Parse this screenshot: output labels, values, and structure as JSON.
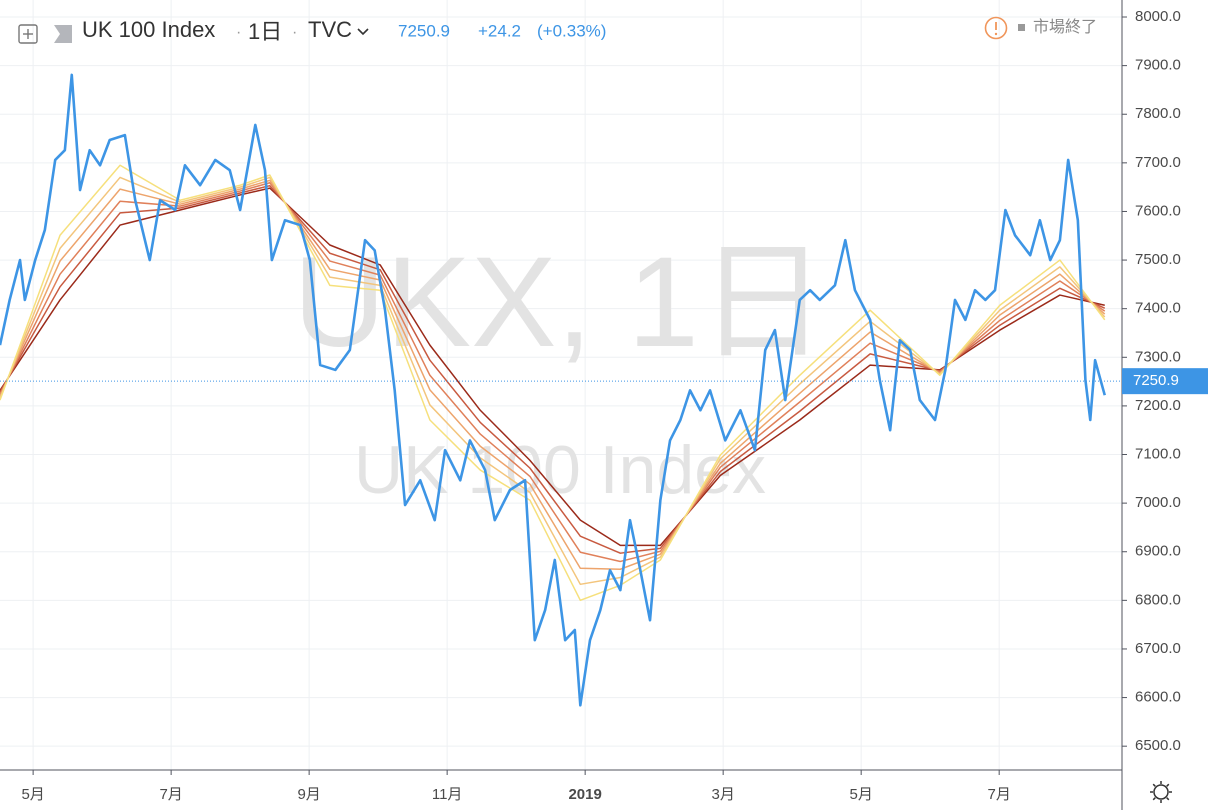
{
  "chart_data": {
    "type": "line",
    "title": "UK 100 Index",
    "interval": "1日",
    "source": "TVC",
    "last_price": 7250.9,
    "change": "+24.2",
    "change_pct": "(+0.33%)",
    "status": "市場終了",
    "watermark": "UKX, 1日",
    "grid": true,
    "xlim": [
      4.52,
      20.78
    ],
    "ylim": [
      6451,
      8035
    ],
    "xticks": [
      {
        "value": 5,
        "label": "5月"
      },
      {
        "value": 7,
        "label": "7月"
      },
      {
        "value": 9,
        "label": "9月"
      },
      {
        "value": 11,
        "label": "11月"
      },
      {
        "value": 13,
        "label": "2019"
      },
      {
        "value": 15,
        "label": "3月"
      },
      {
        "value": 17,
        "label": "5月"
      },
      {
        "value": 19,
        "label": "7月"
      }
    ],
    "yticks": [
      {
        "value": 6500,
        "label": "6500.0"
      },
      {
        "value": 6600,
        "label": "6600.0"
      },
      {
        "value": 6700,
        "label": "6700.0"
      },
      {
        "value": 6800,
        "label": "6800.0"
      },
      {
        "value": 6900,
        "label": "6900.0"
      },
      {
        "value": 7000,
        "label": "7000.0"
      },
      {
        "value": 7100,
        "label": "7100.0"
      },
      {
        "value": 7200,
        "label": "7200.0"
      },
      {
        "value": 7300,
        "label": "7300.0"
      },
      {
        "value": 7400,
        "label": "7400.0"
      },
      {
        "value": 7500,
        "label": "7500.0"
      },
      {
        "value": 7600,
        "label": "7600.0"
      },
      {
        "value": 7700,
        "label": "7700.0"
      },
      {
        "value": 7800,
        "label": "7800.0"
      },
      {
        "value": 7900,
        "label": "7900.0"
      },
      {
        "value": 8000,
        "label": "8000.0"
      }
    ],
    "series": [
      {
        "color": "#3d95e5",
        "x": [
          4.52,
          4.66,
          4.81,
          4.88,
          5.03,
          5.17,
          5.32,
          5.46,
          5.56,
          5.68,
          5.82,
          5.97,
          6.11,
          6.33,
          6.48,
          6.69,
          6.84,
          7.06,
          7.2,
          7.42,
          7.64,
          7.85,
          8.0,
          8.22,
          8.36,
          8.46,
          8.65,
          8.87,
          9.01,
          9.16,
          9.38,
          9.59,
          9.81,
          9.95,
          10.1,
          10.24,
          10.39,
          10.61,
          10.82,
          10.97,
          11.19,
          11.33,
          11.55,
          11.69,
          11.91,
          12.13,
          12.27,
          12.42,
          12.56,
          12.71,
          12.85,
          12.93,
          13.07,
          13.22,
          13.36,
          13.51,
          13.65,
          13.8,
          13.94,
          14.09,
          14.23,
          14.38,
          14.52,
          14.67,
          14.81,
          15.03,
          15.25,
          15.46,
          15.61,
          15.75,
          15.9,
          16.11,
          16.26,
          16.4,
          16.62,
          16.77,
          16.91,
          17.13,
          17.27,
          17.42,
          17.56,
          17.71,
          17.85,
          18.07,
          18.22,
          18.36,
          18.51,
          18.65,
          18.8,
          18.94,
          19.09,
          19.23,
          19.45,
          19.59,
          19.74,
          19.88,
          20.0,
          20.14,
          20.25,
          20.32,
          20.39,
          20.53
        ],
        "values": [
          7325,
          7418,
          7500,
          7418,
          7500,
          7562,
          7706,
          7726,
          7881,
          7644,
          7726,
          7695,
          7747,
          7757,
          7623,
          7500,
          7623,
          7603,
          7695,
          7654,
          7706,
          7685,
          7603,
          7778,
          7685,
          7500,
          7582,
          7572,
          7500,
          7284,
          7274,
          7315,
          7541,
          7520,
          7397,
          7232,
          6996,
          7047,
          6965,
          7109,
          7047,
          7129,
          7068,
          6965,
          7027,
          7047,
          6718,
          6780,
          6883,
          6718,
          6739,
          6584,
          6718,
          6780,
          6862,
          6821,
          6965,
          6862,
          6759,
          7006,
          7129,
          7171,
          7232,
          7191,
          7232,
          7129,
          7191,
          7109,
          7315,
          7356,
          7212,
          7418,
          7438,
          7418,
          7448,
          7541,
          7438,
          7377,
          7253,
          7150,
          7335,
          7315,
          7212,
          7171,
          7274,
          7418,
          7377,
          7438,
          7418,
          7438,
          7603,
          7551,
          7510,
          7582,
          7500,
          7541,
          7706,
          7582,
          7253,
          7171,
          7294,
          7222
        ]
      },
      {
        "color": "#f6e07c",
        "x": [
          4.52,
          5.39,
          6.26,
          7.13,
          8.0,
          8.43,
          9.3,
          10.03,
          10.75,
          11.48,
          12.2,
          12.93,
          13.51,
          14.09,
          14.96,
          16.11,
          17.13,
          18.14,
          19.01,
          19.88,
          20.53
        ],
        "values": [
          7212,
          7551,
          7695,
          7623,
          7654,
          7675,
          7448,
          7438,
          7171,
          7068,
          7006,
          6800,
          6831,
          6883,
          7099,
          7263,
          7397,
          7263,
          7407,
          7500,
          7377
        ]
      },
      {
        "color": "#f3c57c",
        "x": [
          4.52,
          5.39,
          6.26,
          7.13,
          8.0,
          8.43,
          9.3,
          10.03,
          10.75,
          11.48,
          12.2,
          12.93,
          13.51,
          14.09,
          14.96,
          16.11,
          17.13,
          18.14,
          19.01,
          19.88,
          20.53
        ],
        "values": [
          7216,
          7524,
          7670,
          7619,
          7650,
          7670,
          7465,
          7448,
          7202,
          7093,
          7022,
          6833,
          6847,
          6889,
          7091,
          7245,
          7374,
          7265,
          7397,
          7486,
          7383
        ]
      },
      {
        "color": "#eda46c",
        "x": [
          4.52,
          5.39,
          6.26,
          7.13,
          8.0,
          8.43,
          9.3,
          10.03,
          10.75,
          11.48,
          12.2,
          12.93,
          13.51,
          14.09,
          14.96,
          16.11,
          17.13,
          18.14,
          19.01,
          19.88,
          20.53
        ],
        "values": [
          7220,
          7498,
          7646,
          7615,
          7646,
          7664,
          7481,
          7459,
          7233,
          7117,
          7039,
          6866,
          6864,
          6895,
          7082,
          7226,
          7352,
          7267,
          7387,
          7471,
          7389
        ]
      },
      {
        "color": "#e0805a",
        "x": [
          4.52,
          5.39,
          6.26,
          7.13,
          8.0,
          8.43,
          9.3,
          10.03,
          10.75,
          11.48,
          12.2,
          12.93,
          13.51,
          14.09,
          14.96,
          16.11,
          17.13,
          18.14,
          19.01,
          19.88,
          20.53
        ],
        "values": [
          7224,
          7471,
          7621,
          7611,
          7642,
          7659,
          7498,
          7469,
          7263,
          7142,
          7055,
          6899,
          6880,
          6901,
          7074,
          7208,
          7329,
          7270,
          7376,
          7457,
          7395
        ]
      },
      {
        "color": "#c85a40",
        "x": [
          4.52,
          5.39,
          6.26,
          7.13,
          8.0,
          8.43,
          9.3,
          10.03,
          10.75,
          11.48,
          12.2,
          12.93,
          13.51,
          14.09,
          14.96,
          16.11,
          17.13,
          18.14,
          19.01,
          19.88,
          20.53
        ],
        "values": [
          7228,
          7445,
          7597,
          7607,
          7638,
          7653,
          7514,
          7480,
          7294,
          7166,
          7072,
          6932,
          6897,
          6907,
          7065,
          7189,
          7307,
          7272,
          7366,
          7442,
          7401
        ]
      },
      {
        "color": "#9b2a1a",
        "x": [
          4.52,
          5.39,
          6.26,
          7.13,
          8.0,
          8.43,
          9.3,
          10.03,
          10.75,
          11.48,
          12.2,
          12.93,
          13.51,
          14.09,
          14.96,
          16.11,
          17.13,
          18.14,
          19.01,
          19.88,
          20.53
        ],
        "values": [
          7232,
          7418,
          7572,
          7603,
          7634,
          7648,
          7531,
          7490,
          7325,
          7191,
          7088,
          6965,
          6913,
          6913,
          7057,
          7171,
          7284,
          7274,
          7356,
          7428,
          7407
        ]
      }
    ]
  }
}
